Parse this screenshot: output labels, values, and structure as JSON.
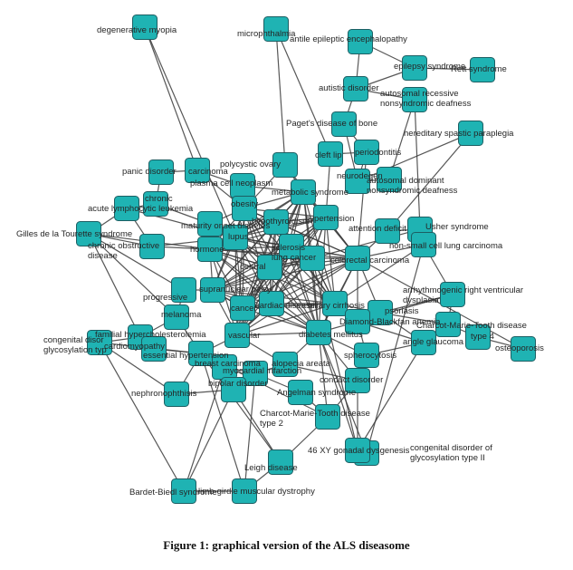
{
  "caption": "Figure 1: graphical version of the ALS diseasome",
  "node_color": "#1fb3b3",
  "node_border_color": "#1c5f63",
  "edge_color": "#3a3a3a",
  "nodes": [
    {
      "id": "degenerative-myopia",
      "label": "degenerative myopia"
    },
    {
      "id": "microphthalmia",
      "label": "microphthalmia"
    },
    {
      "id": "antiepileptic",
      "label": "antile epileptic encephalopathy"
    },
    {
      "id": "epilepsy-syndrome",
      "label": "epilepsy syndrome"
    },
    {
      "id": "rett-syndrome",
      "label": "Rett syndrome"
    },
    {
      "id": "autistic-disorder",
      "label": "autistic disorder"
    },
    {
      "id": "ar-nonsyndromic-deafness",
      "label": "autosomal recessive nonsyndromic deafness"
    },
    {
      "id": "pagets",
      "label": "Paget's disease of bone"
    },
    {
      "id": "hsp",
      "label": "hereditary spastic paraplegia"
    },
    {
      "id": "panic",
      "label": "panic disorder"
    },
    {
      "id": "carcinoma",
      "label": "carcinoma"
    },
    {
      "id": "pcos",
      "label": "polycystic ovary"
    },
    {
      "id": "cleft",
      "label": "cleft lip"
    },
    {
      "id": "odontitis",
      "label": "periodontitis"
    },
    {
      "id": "neuro",
      "label": "neurodegen"
    },
    {
      "id": "ad-nonsyndromic-deafness",
      "label": "autosomal dominant nonsyndromic deafness"
    },
    {
      "id": "plasma-cell",
      "label": "plasma cell neoplasm"
    },
    {
      "id": "metabolic",
      "label": "metabolic syndrome"
    },
    {
      "id": "chronic",
      "label": "chronic"
    },
    {
      "id": "all",
      "label": "acute lymphocytic leukemia"
    },
    {
      "id": "obesity",
      "label": "obesity"
    },
    {
      "id": "maturity-diabetes",
      "label": "maturity onset diabetes"
    },
    {
      "id": "thyroid",
      "label": "hypothyroidism"
    },
    {
      "id": "hypertension",
      "label": "hypertension"
    },
    {
      "id": "usher",
      "label": "Usher syndrome"
    },
    {
      "id": "tourette",
      "label": "Gilles de la Tourette syndrome"
    },
    {
      "id": "copd",
      "label": "chronic obstructive pulmonary disease"
    },
    {
      "id": "lupus",
      "label": "lupus"
    },
    {
      "id": "attention-deficit",
      "label": "attention deficit"
    },
    {
      "id": "hormone",
      "label": "hormone"
    },
    {
      "id": "sclerosis",
      "label": "sclerosis"
    },
    {
      "id": "ncs-lung",
      "label": "non-small cell lung carcinoma"
    },
    {
      "id": "lung-cancer",
      "label": "lung cancer"
    },
    {
      "id": "central",
      "label": "central"
    },
    {
      "id": "colorectal",
      "label": "colorectal carcinoma"
    },
    {
      "id": "arvd",
      "label": "arrhythmogenic right ventricular dysplasia"
    },
    {
      "id": "progressive",
      "label": "progressive"
    },
    {
      "id": "supranuclear",
      "label": "supranuclear palsy"
    },
    {
      "id": "biliary",
      "label": "biliary cirrhosis"
    },
    {
      "id": "melanoma",
      "label": "melanoma"
    },
    {
      "id": "cardiac",
      "label": "cardiac disease"
    },
    {
      "id": "cancer",
      "label": "cancer"
    },
    {
      "id": "psoriasis",
      "label": "psoriasis"
    },
    {
      "id": "diamond",
      "label": "Diamond-Blackfan anemia"
    },
    {
      "id": "cmt",
      "label": "Charcot-Marie-Tooth disease"
    },
    {
      "id": "cmt4",
      "label": "type 4"
    },
    {
      "id": "angle-glaucoma",
      "label": "angle glaucoma"
    },
    {
      "id": "osteoporosis",
      "label": "osteoporosis"
    },
    {
      "id": "cdg",
      "label": "congenital disorder of glycosylation type"
    },
    {
      "id": "familial-hyper",
      "label": "familial hypercholesterolemia"
    },
    {
      "id": "cardiomyopathy",
      "label": "cardiomyopathy"
    },
    {
      "id": "essential-hyper",
      "label": "essential hypertension"
    },
    {
      "id": "vascular",
      "label": "vascular"
    },
    {
      "id": "diabetes",
      "label": "diabetes mellitus"
    },
    {
      "id": "spherocytosis",
      "label": "spherocytosis"
    },
    {
      "id": "breast",
      "label": "breast carcinoma"
    },
    {
      "id": "alopecia",
      "label": "alopecia areata"
    },
    {
      "id": "myocardial",
      "label": "myocardial infarction"
    },
    {
      "id": "bipolar",
      "label": "bipolar disorder"
    },
    {
      "id": "conduct",
      "label": "conduct disorder"
    },
    {
      "id": "cmt2",
      "label": "Charcot-Marie-Tooth disease type 2"
    },
    {
      "id": "nephronophthisis",
      "label": "nephronophthisis"
    },
    {
      "id": "cdg2",
      "label": "congenital disorder of glycosylation type II"
    },
    {
      "id": "gonadal",
      "label": "46 XY gonadal dysgenesis"
    },
    {
      "id": "leigh",
      "label": "Leigh disease"
    },
    {
      "id": "bardet",
      "label": "Bardet-Biedl syndrome"
    },
    {
      "id": "limb-girdle",
      "label": "limb-girdle muscular dystrophy"
    },
    {
      "id": "angelman",
      "label": "Angelman syndrome"
    }
  ]
}
